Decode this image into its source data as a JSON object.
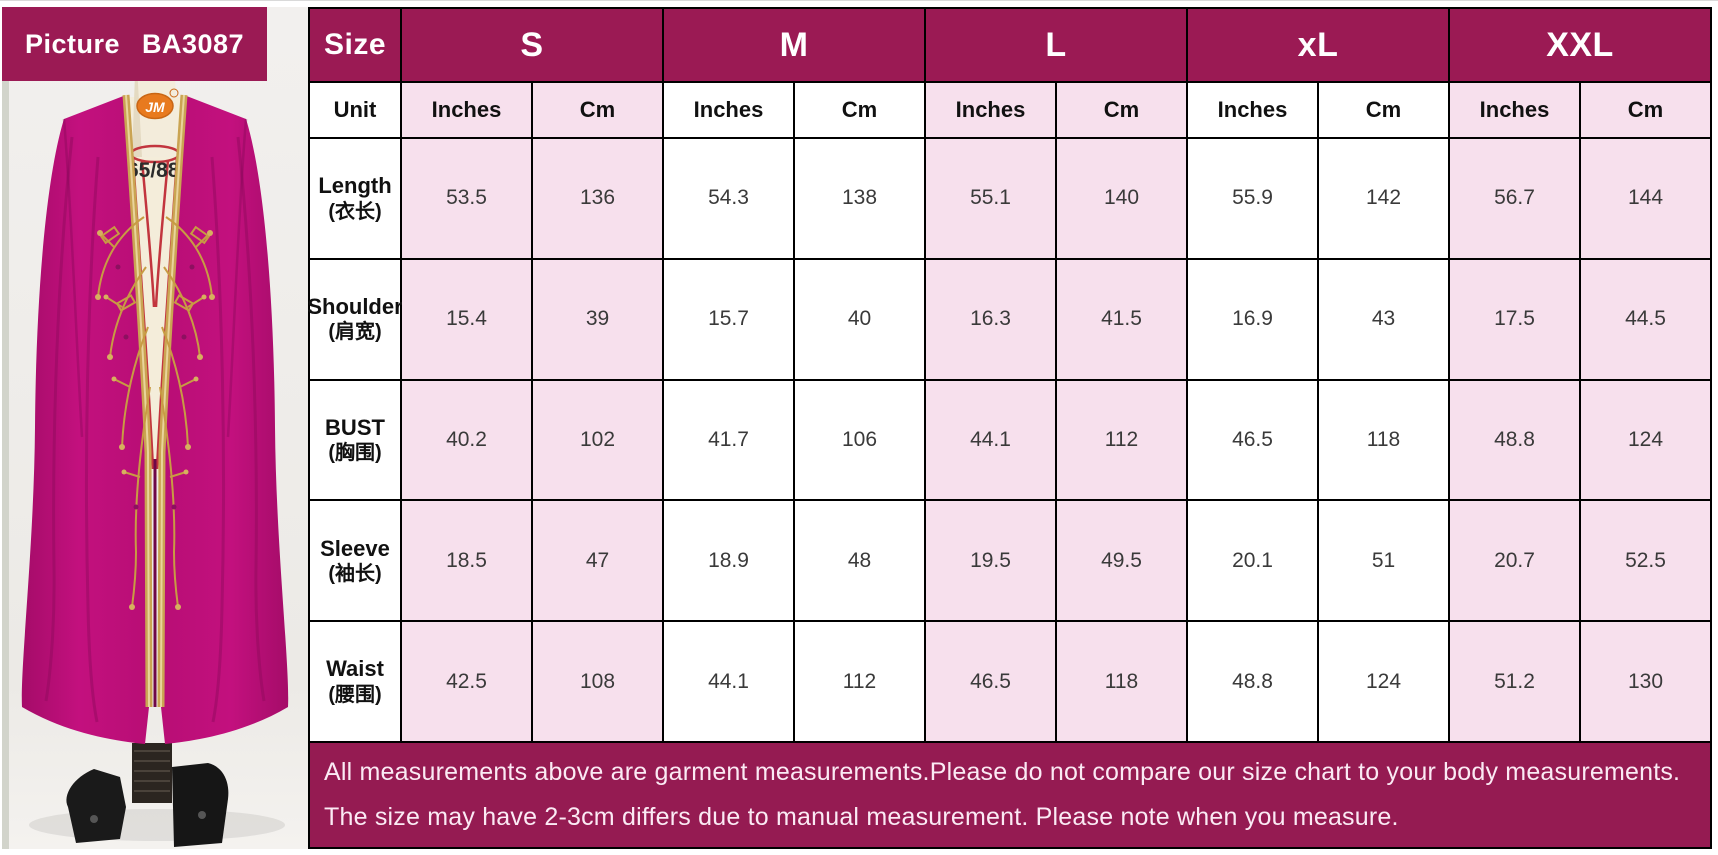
{
  "picture": {
    "header_label": "Picture",
    "product_code": "BA3087",
    "logo_text": "JM",
    "mannequin_label": "165/88B"
  },
  "table": {
    "size_label": "Size",
    "unit_label": "Unit",
    "sizes": [
      "S",
      "M",
      "L",
      "xL",
      "XXL"
    ],
    "unit_columns": [
      "Inches",
      "Cm"
    ],
    "rows": [
      {
        "key": "length",
        "label_en": "Length",
        "label_zh": "(衣长)",
        "values": [
          "53.5",
          "136",
          "54.3",
          "138",
          "55.1",
          "140",
          "55.9",
          "142",
          "56.7",
          "144"
        ]
      },
      {
        "key": "shoulder",
        "label_en": "Shoulder",
        "label_zh": "(肩宽)",
        "values": [
          "15.4",
          "39",
          "15.7",
          "40",
          "16.3",
          "41.5",
          "16.9",
          "43",
          "17.5",
          "44.5"
        ]
      },
      {
        "key": "bust",
        "label_en": "BUST",
        "label_zh": "(胸围)",
        "values": [
          "40.2",
          "102",
          "41.7",
          "106",
          "44.1",
          "112",
          "46.5",
          "118",
          "48.8",
          "124"
        ]
      },
      {
        "key": "sleeve",
        "label_en": "Sleeve",
        "label_zh": "(袖长)",
        "values": [
          "18.5",
          "47",
          "18.9",
          "48",
          "19.5",
          "49.5",
          "20.1",
          "51",
          "20.7",
          "52.5"
        ]
      },
      {
        "key": "waist",
        "label_en": "Waist",
        "label_zh": "(腰围)",
        "values": [
          "42.5",
          "108",
          "44.1",
          "112",
          "46.5",
          "118",
          "48.8",
          "124",
          "51.2",
          "130"
        ]
      }
    ],
    "notes": [
      "All measurements above are garment measurements.Please do not compare our size chart to your body measurements.",
      "The size may have 2-3cm differs due to manual measurement. Please note when you measure."
    ]
  },
  "colors": {
    "header_bg": "#9b1a54",
    "note_bg": "#951b52",
    "pink_cell": "#f7e0ed",
    "white_cell": "#ffffff",
    "border": "#000000",
    "dress": "#c0117b",
    "gold_trim": "#caa452",
    "logo_orange": "#e87a1e"
  }
}
